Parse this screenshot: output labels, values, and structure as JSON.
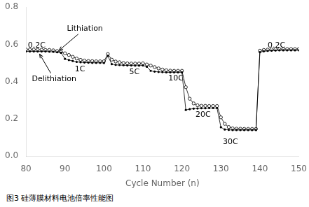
{
  "chart_data": {
    "type": "line",
    "xlabel": "Cycle Number (n)",
    "caption": "图3 硅薄膜材料电池倍率性能图",
    "x": [
      80,
      81,
      82,
      83,
      84,
      85,
      86,
      87,
      88,
      89,
      90,
      91,
      92,
      93,
      94,
      95,
      96,
      97,
      98,
      99,
      100,
      101,
      102,
      103,
      104,
      105,
      106,
      107,
      108,
      109,
      110,
      111,
      112,
      113,
      114,
      115,
      116,
      117,
      118,
      119,
      120,
      121,
      122,
      123,
      124,
      125,
      126,
      127,
      128,
      129,
      130,
      131,
      132,
      133,
      134,
      135,
      136,
      137,
      138,
      139,
      140,
      141,
      142,
      143,
      144,
      145,
      146,
      147,
      148,
      149,
      150
    ],
    "series": [
      {
        "color": "#000000",
        "marker": "dot",
        "line_style": "solid",
        "values": [
          0.562,
          0.562,
          0.562,
          0.562,
          0.562,
          0.562,
          0.561,
          0.56,
          0.558,
          0.555,
          0.522,
          0.516,
          0.511,
          0.506,
          0.504,
          0.503,
          0.502,
          0.501,
          0.501,
          0.501,
          0.5,
          0.538,
          0.494,
          0.49,
          0.489,
          0.488,
          0.487,
          0.487,
          0.486,
          0.486,
          0.487,
          0.48,
          0.458,
          0.454,
          0.452,
          0.451,
          0.45,
          0.45,
          0.45,
          0.45,
          0.45,
          0.248,
          0.252,
          0.255,
          0.256,
          0.257,
          0.257,
          0.258,
          0.258,
          0.258,
          0.155,
          0.143,
          0.141,
          0.14,
          0.14,
          0.14,
          0.14,
          0.14,
          0.14,
          0.14,
          0.558,
          0.563,
          0.565,
          0.566,
          0.567,
          0.568,
          0.568,
          0.568,
          0.568,
          0.568,
          0.568
        ]
      },
      {
        "color": "#000000",
        "marker": "open_circle",
        "line_style": "solid",
        "values": [
          0.572,
          0.572,
          0.572,
          0.571,
          0.571,
          0.57,
          0.57,
          0.568,
          0.564,
          0.56,
          0.552,
          0.543,
          0.533,
          0.524,
          0.517,
          0.513,
          0.511,
          0.51,
          0.509,
          0.509,
          0.509,
          0.548,
          0.518,
          0.508,
          0.504,
          0.5,
          0.498,
          0.497,
          0.497,
          0.497,
          0.498,
          0.492,
          0.486,
          0.478,
          0.471,
          0.465,
          0.461,
          0.459,
          0.458,
          0.458,
          0.458,
          0.37,
          0.308,
          0.283,
          0.273,
          0.27,
          0.27,
          0.269,
          0.269,
          0.269,
          0.208,
          0.173,
          0.156,
          0.149,
          0.147,
          0.147,
          0.146,
          0.146,
          0.146,
          0.146,
          0.566,
          0.57,
          0.572,
          0.573,
          0.574,
          0.574,
          0.575,
          0.575,
          0.575,
          0.575,
          0.575
        ]
      }
    ],
    "xlim": [
      80,
      150
    ],
    "ylim": [
      0.0,
      0.8
    ],
    "xticks": [
      80,
      90,
      100,
      110,
      120,
      130,
      140,
      150
    ],
    "yticks": [
      {
        "value": 0.0,
        "label": "0.0"
      },
      0.2,
      0.4,
      0.6,
      0.8
    ],
    "grid": false,
    "annotations": [
      {
        "text": "0.2C",
        "x": 80.5,
        "y": 0.595
      },
      {
        "text": "1C",
        "x": 92.5,
        "y": 0.465
      },
      {
        "text": "5C",
        "x": 106.5,
        "y": 0.452
      },
      {
        "text": "10C",
        "x": 116.5,
        "y": 0.418
      },
      {
        "text": "20C",
        "x": 123.5,
        "y": 0.222
      },
      {
        "text": "30C",
        "x": 130.5,
        "y": 0.075
      },
      {
        "text": "0.2C",
        "x": 142.0,
        "y": 0.595
      },
      {
        "text": "Lithiation",
        "x": 90.5,
        "y": 0.685,
        "arrow_x": 88.5,
        "arrow_y": 0.568
      },
      {
        "text": "Delithiation",
        "x": 81.5,
        "y": 0.415,
        "arrow_x": 83.5,
        "arrow_y": 0.548
      }
    ]
  }
}
